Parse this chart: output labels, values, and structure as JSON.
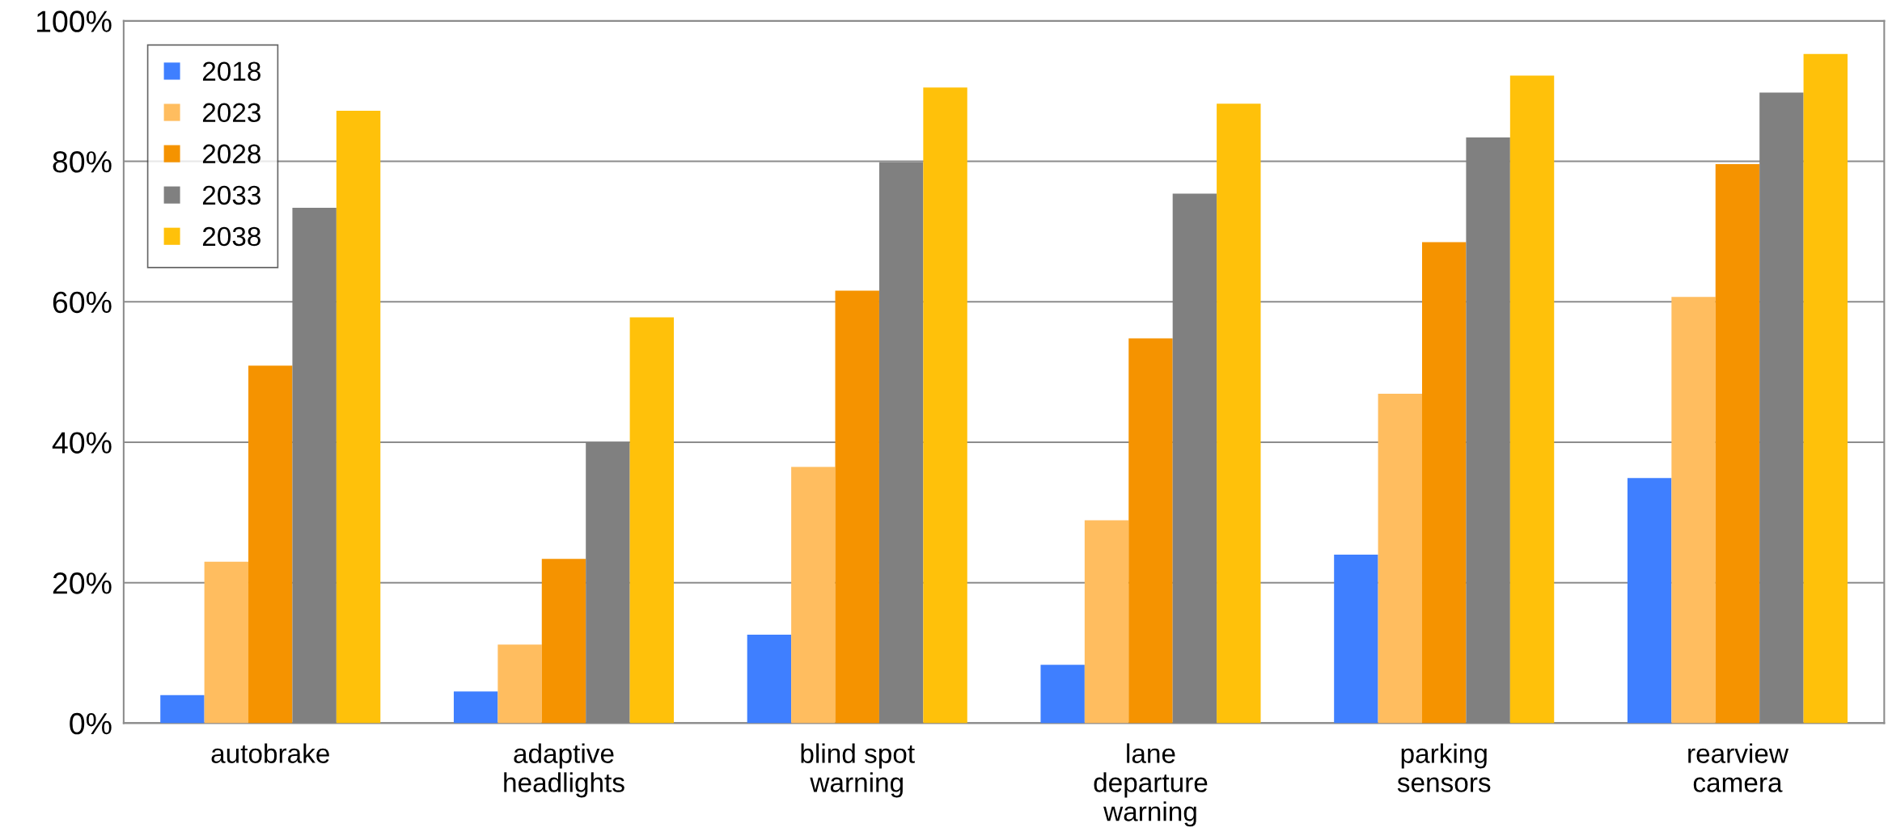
{
  "chart_data": {
    "type": "bar",
    "categories": [
      "autobrake",
      "adaptive\nheadlights",
      "blind spot\nwarning",
      "lane\ndeparture\nwarning",
      "parking\nsensors",
      "rearview\ncamera"
    ],
    "series": [
      {
        "name": "2018",
        "color": "#3f7fff",
        "values": [
          4.0,
          4.5,
          12.6,
          8.3,
          24.0,
          34.9
        ]
      },
      {
        "name": "2023",
        "color": "#ffbd5f",
        "values": [
          23.0,
          11.2,
          36.5,
          28.9,
          46.9,
          60.7
        ]
      },
      {
        "name": "2028",
        "color": "#f59300",
        "values": [
          50.9,
          23.4,
          61.6,
          54.8,
          68.5,
          79.6
        ]
      },
      {
        "name": "2033",
        "color": "#808080",
        "values": [
          73.4,
          40.0,
          79.9,
          75.4,
          83.4,
          89.8
        ]
      },
      {
        "name": "2038",
        "color": "#ffc10a",
        "values": [
          87.2,
          57.8,
          90.5,
          88.2,
          92.2,
          95.3
        ]
      }
    ],
    "ylim": [
      0,
      100
    ],
    "yticks": [
      {
        "value": 0,
        "label": "0%"
      },
      {
        "value": 20,
        "label": "20%"
      },
      {
        "value": 40,
        "label": "40%"
      },
      {
        "value": 60,
        "label": "60%"
      },
      {
        "value": 80,
        "label": "80%"
      },
      {
        "value": 100,
        "label": "100%"
      }
    ],
    "grid": "y",
    "legend": "top left"
  }
}
